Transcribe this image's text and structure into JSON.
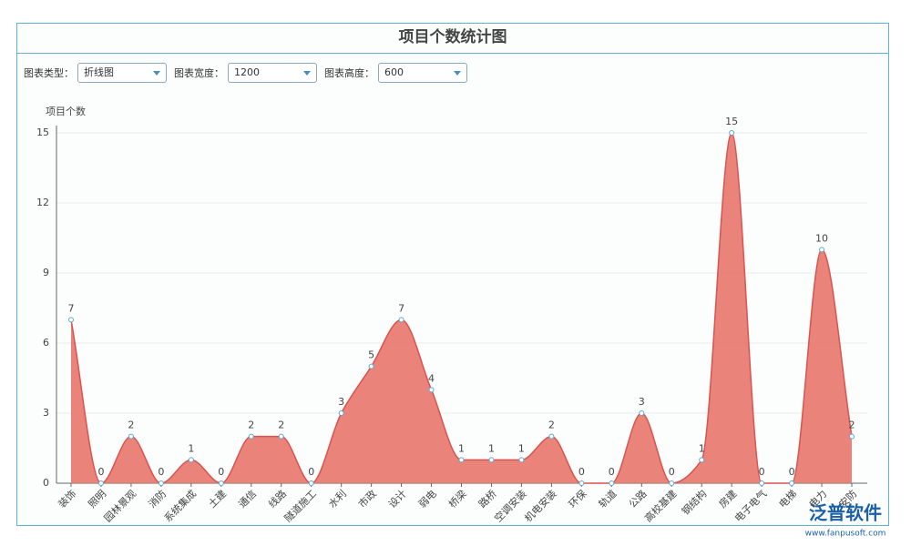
{
  "chart_data": {
    "type": "line",
    "title": "项目个数统计图",
    "ylabel": "项目个数",
    "categories": [
      "装饰",
      "照明",
      "园林景观",
      "消防",
      "系统集成",
      "土建",
      "通信",
      "线路",
      "隧道施工",
      "水利",
      "市政",
      "设计",
      "弱电",
      "桥梁",
      "路桥",
      "空调安装",
      "机电安装",
      "环保",
      "轨道",
      "公路",
      "高校基建",
      "钢结构",
      "房建",
      "电子电气",
      "电梯",
      "电力",
      "安防"
    ],
    "series": [
      {
        "name": "项目个数",
        "color": "#e8776b",
        "values": [
          7,
          0,
          2,
          0,
          1,
          0,
          2,
          2,
          0,
          3,
          5,
          7,
          4,
          1,
          1,
          1,
          2,
          0,
          0,
          3,
          0,
          1,
          15,
          0,
          0,
          10,
          2
        ]
      }
    ],
    "ylim": [
      0,
      15
    ],
    "yticks": [
      0,
      3,
      6,
      9,
      12,
      15
    ],
    "grid": true,
    "smooth": true,
    "area": true
  },
  "controls": [
    {
      "label": "图表类型：",
      "value": "折线图"
    },
    {
      "label": "图表宽度：",
      "value": "1200"
    },
    {
      "label": "图表高度：",
      "value": "600"
    }
  ],
  "watermark": {
    "brand": "泛普软件",
    "url": "www.fanpusoft.com"
  }
}
